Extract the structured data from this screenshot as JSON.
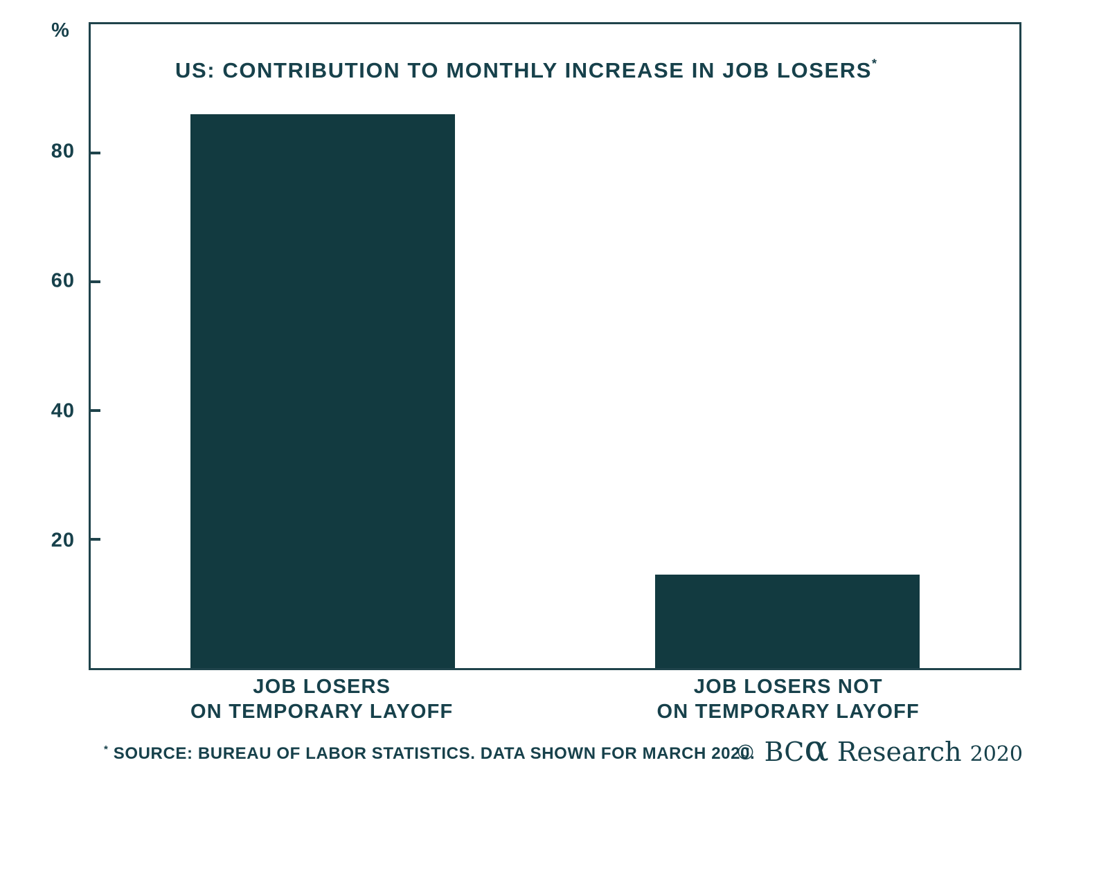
{
  "chart_data": {
    "type": "bar",
    "title": "US: CONTRIBUTION TO MONTHLY INCREASE IN JOB LOSERS",
    "title_superscript": "*",
    "y_axis_unit": "%",
    "categories": [
      {
        "lines": [
          "JOB LOSERS",
          "ON TEMPORARY LAYOFF"
        ]
      },
      {
        "lines": [
          "JOB LOSERS NOT",
          "ON TEMPORARY LAYOFF"
        ]
      }
    ],
    "values": [
      86,
      14.5
    ],
    "ylim": [
      0,
      100
    ],
    "yticks": [
      20,
      40,
      60,
      80
    ],
    "grid": false,
    "legend": "none",
    "bar_color": "#123a40",
    "frame_color": "#1f434b",
    "text_color": "#17414b"
  },
  "footer": {
    "footnote_superscript": "*",
    "footnote_text": "SOURCE: BUREAU OF LABOR STATISTICS. DATA SHOWN FOR MARCH 2020.",
    "credit_copyright": "©",
    "credit_brand_prefix": "BC",
    "credit_brand_alpha": "α",
    "credit_brand_suffix": "Research",
    "credit_year": "2020"
  }
}
